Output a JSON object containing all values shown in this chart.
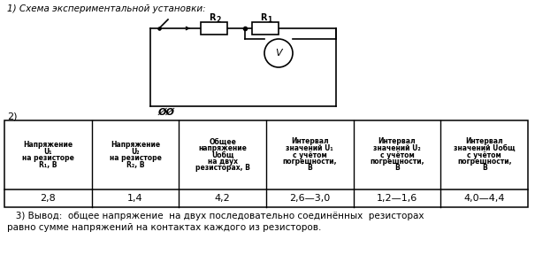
{
  "title1": "1) Схема экспериментальной установки:",
  "label2": "2)",
  "conclusion_line1": "   3) Вывод:  общее напряжение  на двух последовательно соединённых  резисторах",
  "conclusion_line2": "равно сумме напряжений на контактах каждого из резисторов.",
  "col_headers": [
    "Напряжение\nU1\nна резисторе\nR1, В",
    "Напряжение\nU2\nна резисторе\nR2, В",
    "Общее\nнапряжение\nUобщ\nна двух\nрезисторах, В",
    "Интервал\nзначений U1\nс учётом\nпогрешности,\nВ",
    "Интервал\nзначений U2\nс учётом\nпогрешности,\nВ",
    "Интервал\nзначений Uобщ\nс учётом\nпогрешности,\nВ"
  ],
  "col_headers_parts": [
    [
      [
        "Напряжение",
        false
      ],
      [
        "U",
        true
      ],
      [
        "₁",
        false
      ],
      [
        "на резисторе",
        false
      ],
      [
        "R",
        true
      ],
      [
        "₁",
        false
      ],
      [
        ", В",
        false
      ]
    ],
    [
      [
        "Напряжение",
        false
      ],
      [
        "U",
        true
      ],
      [
        "₂",
        false
      ],
      [
        "на резисторе",
        false
      ],
      [
        "R",
        true
      ],
      [
        "₂",
        false
      ],
      [
        ", В",
        false
      ]
    ],
    [
      [
        "Общее",
        false
      ],
      [
        "напряжение",
        false
      ],
      [
        "U",
        true
      ],
      [
        "общ",
        false
      ],
      [
        "на двух",
        false
      ],
      [
        "резисторах, В",
        false
      ]
    ],
    [
      [
        "Интервал",
        false
      ],
      [
        "значений ",
        false
      ],
      [
        "U",
        true
      ],
      [
        "₁",
        false
      ],
      [
        "с учётом",
        false
      ],
      [
        "погрешности,",
        false
      ],
      [
        "В",
        false
      ]
    ],
    [
      [
        "Интервал",
        false
      ],
      [
        "значений ",
        false
      ],
      [
        "U",
        true
      ],
      [
        "₂",
        false
      ],
      [
        "с учётом",
        false
      ],
      [
        "погрешности,",
        false
      ],
      [
        "В",
        false
      ]
    ],
    [
      [
        "Интервал",
        false
      ],
      [
        "значений ",
        false
      ],
      [
        "U",
        true
      ],
      [
        "общ",
        false
      ],
      [
        "с учётом",
        false
      ],
      [
        "погрешности,",
        false
      ],
      [
        "В",
        false
      ]
    ]
  ],
  "data_row": [
    "2,8",
    "1,4",
    "4,2",
    "2,6—3,0",
    "1,2—1,6",
    "4,0—4,4"
  ],
  "bg_color": "#ffffff",
  "text_color": "#000000"
}
